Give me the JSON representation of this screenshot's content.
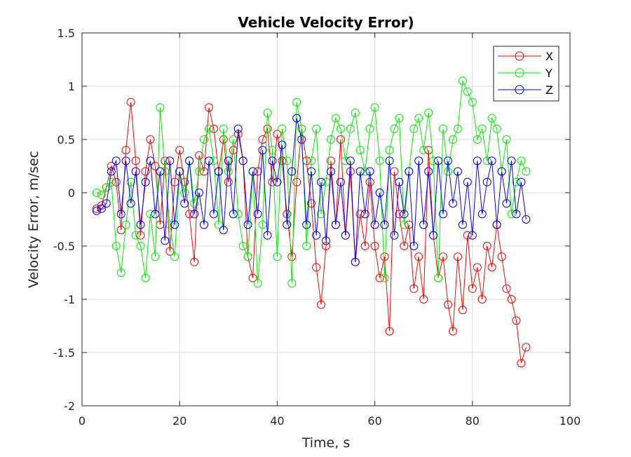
{
  "chart_data": {
    "type": "scatter",
    "title": "Vehicle Velocity Error)",
    "xlabel": "Time, s",
    "ylabel": "Velocity Error, m/sec",
    "xlim": [
      0,
      100
    ],
    "ylim": [
      -2,
      1.5
    ],
    "xticks": [
      "0",
      "20",
      "40",
      "60",
      "80",
      "100"
    ],
    "yticks": [
      "-2",
      "-1.5",
      "-1",
      "-0.5",
      "0",
      "0.5",
      "1",
      "1.5"
    ],
    "grid": true,
    "legend_position": "top-right",
    "marker": "circle-open-with-line",
    "series": [
      {
        "name": "X",
        "color": "#ff0000",
        "points": [
          [
            3,
            -0.15
          ],
          [
            4,
            -0.12
          ],
          [
            5,
            0.05
          ],
          [
            6,
            0.25
          ],
          [
            7,
            0.1
          ],
          [
            8,
            -0.35
          ],
          [
            9,
            0.4
          ],
          [
            10,
            0.85
          ],
          [
            11,
            0.3
          ],
          [
            12,
            -0.4
          ],
          [
            13,
            0.2
          ],
          [
            14,
            0.5
          ],
          [
            15,
            0.25
          ],
          [
            16,
            -0.3
          ],
          [
            17,
            0.3
          ],
          [
            18,
            -0.55
          ],
          [
            19,
            0.1
          ],
          [
            20,
            0.4
          ],
          [
            21,
            0.1
          ],
          [
            22,
            -0.2
          ],
          [
            23,
            -0.65
          ],
          [
            24,
            0.35
          ],
          [
            25,
            0.2
          ],
          [
            26,
            0.8
          ],
          [
            27,
            0.6
          ],
          [
            28,
            0.2
          ],
          [
            29,
            0.5
          ],
          [
            30,
            0.1
          ],
          [
            31,
            0.4
          ],
          [
            32,
            0.55
          ],
          [
            33,
            0.3
          ],
          [
            34,
            -0.6
          ],
          [
            35,
            -0.8
          ],
          [
            36,
            0.2
          ],
          [
            37,
            0.5
          ],
          [
            38,
            0.6
          ],
          [
            39,
            0.1
          ],
          [
            40,
            0.55
          ],
          [
            41,
            0.3
          ],
          [
            42,
            -0.2
          ],
          [
            43,
            -0.6
          ],
          [
            44,
            0.1
          ],
          [
            45,
            0.6
          ],
          [
            46,
            0.3
          ],
          [
            47,
            -0.1
          ],
          [
            48,
            -0.7
          ],
          [
            49,
            -1.05
          ],
          [
            50,
            -0.5
          ],
          [
            51,
            0.3
          ],
          [
            52,
            -0.3
          ],
          [
            53,
            0.5
          ],
          [
            54,
            -0.4
          ],
          [
            55,
            0.2
          ],
          [
            56,
            -0.65
          ],
          [
            57,
            -0.2
          ],
          [
            58,
            -0.5
          ],
          [
            59,
            0.1
          ],
          [
            60,
            -0.5
          ],
          [
            61,
            -0.8
          ],
          [
            62,
            -0.6
          ],
          [
            63,
            -1.3
          ],
          [
            64,
            0.2
          ],
          [
            65,
            -0.2
          ],
          [
            66,
            -0.5
          ],
          [
            67,
            -0.3
          ],
          [
            68,
            -0.9
          ],
          [
            69,
            -0.6
          ],
          [
            70,
            -1.0
          ],
          [
            71,
            0.4
          ],
          [
            72,
            -0.4
          ],
          [
            73,
            -0.8
          ],
          [
            74,
            -0.6
          ],
          [
            75,
            -1.05
          ],
          [
            76,
            -1.3
          ],
          [
            77,
            -0.6
          ],
          [
            78,
            -1.1
          ],
          [
            79,
            -0.4
          ],
          [
            80,
            -0.9
          ],
          [
            81,
            -0.7
          ],
          [
            82,
            -1.0
          ],
          [
            83,
            -0.5
          ],
          [
            84,
            -0.7
          ],
          [
            85,
            -0.3
          ],
          [
            86,
            -0.6
          ],
          [
            87,
            -0.9
          ],
          [
            88,
            -1.0
          ],
          [
            89,
            -1.2
          ],
          [
            90,
            -1.6
          ],
          [
            91,
            -1.45
          ]
        ]
      },
      {
        "name": "Y",
        "color": "#00ee00",
        "points": [
          [
            3,
            0.0
          ],
          [
            4,
            -0.02
          ],
          [
            5,
            0.05
          ],
          [
            6,
            0.1
          ],
          [
            7,
            -0.5
          ],
          [
            8,
            -0.75
          ],
          [
            9,
            -0.3
          ],
          [
            10,
            0.1
          ],
          [
            11,
            -0.4
          ],
          [
            12,
            -0.5
          ],
          [
            13,
            -0.8
          ],
          [
            14,
            -0.2
          ],
          [
            15,
            -0.6
          ],
          [
            16,
            0.8
          ],
          [
            17,
            0.2
          ],
          [
            18,
            -0.3
          ],
          [
            19,
            -0.6
          ],
          [
            20,
            0.2
          ],
          [
            21,
            0.0
          ],
          [
            22,
            0.3
          ],
          [
            23,
            -0.1
          ],
          [
            24,
            0.2
          ],
          [
            25,
            0.5
          ],
          [
            26,
            0.6
          ],
          [
            27,
            0.3
          ],
          [
            28,
            -0.3
          ],
          [
            29,
            0.6
          ],
          [
            30,
            0.2
          ],
          [
            31,
            0.5
          ],
          [
            32,
            -0.2
          ],
          [
            33,
            -0.5
          ],
          [
            34,
            -0.6
          ],
          [
            35,
            0.2
          ],
          [
            36,
            -0.85
          ],
          [
            37,
            -0.3
          ],
          [
            38,
            0.75
          ],
          [
            39,
            0.4
          ],
          [
            40,
            -0.6
          ],
          [
            41,
            0.6
          ],
          [
            42,
            0.3
          ],
          [
            43,
            -0.85
          ],
          [
            44,
            0.85
          ],
          [
            45,
            0.6
          ],
          [
            46,
            -0.5
          ],
          [
            47,
            0.3
          ],
          [
            48,
            0.6
          ],
          [
            49,
            -0.2
          ],
          [
            50,
            0.1
          ],
          [
            51,
            0.5
          ],
          [
            52,
            0.7
          ],
          [
            53,
            0.6
          ],
          [
            54,
            0.3
          ],
          [
            55,
            0.6
          ],
          [
            56,
            0.75
          ],
          [
            57,
            0.4
          ],
          [
            58,
            0.2
          ],
          [
            59,
            0.6
          ],
          [
            60,
            0.8
          ],
          [
            61,
            0.3
          ],
          [
            62,
            -0.8
          ],
          [
            63,
            0.4
          ],
          [
            64,
            0.6
          ],
          [
            65,
            0.7
          ],
          [
            66,
            -0.3
          ],
          [
            67,
            0.2
          ],
          [
            68,
            0.6
          ],
          [
            69,
            0.7
          ],
          [
            70,
            0.4
          ],
          [
            71,
            0.75
          ],
          [
            72,
            0.3
          ],
          [
            73,
            -0.8
          ],
          [
            74,
            0.6
          ],
          [
            75,
            0.2
          ],
          [
            76,
            0.5
          ],
          [
            77,
            0.6
          ],
          [
            78,
            1.05
          ],
          [
            79,
            0.95
          ],
          [
            80,
            0.85
          ],
          [
            81,
            0.5
          ],
          [
            82,
            0.6
          ],
          [
            83,
            0.3
          ],
          [
            84,
            0.7
          ],
          [
            85,
            0.6
          ],
          [
            86,
            0.2
          ],
          [
            87,
            0.5
          ],
          [
            88,
            -0.2
          ],
          [
            89,
            0.1
          ],
          [
            90,
            0.3
          ],
          [
            91,
            0.2
          ]
        ]
      },
      {
        "name": "Z",
        "color": "#0000ff",
        "points": [
          [
            3,
            -0.17
          ],
          [
            4,
            -0.15
          ],
          [
            5,
            -0.1
          ],
          [
            6,
            0.2
          ],
          [
            7,
            0.3
          ],
          [
            8,
            -0.2
          ],
          [
            9,
            0.3
          ],
          [
            10,
            -0.1
          ],
          [
            11,
            0.2
          ],
          [
            12,
            -0.3
          ],
          [
            13,
            0.1
          ],
          [
            14,
            0.3
          ],
          [
            15,
            -0.2
          ],
          [
            16,
            0.2
          ],
          [
            17,
            -0.45
          ],
          [
            18,
            0.3
          ],
          [
            19,
            -0.3
          ],
          [
            20,
            0.2
          ],
          [
            21,
            -0.1
          ],
          [
            22,
            0.3
          ],
          [
            23,
            -0.2
          ],
          [
            24,
            0.0
          ],
          [
            25,
            -0.3
          ],
          [
            26,
            0.3
          ],
          [
            27,
            -0.2
          ],
          [
            28,
            0.2
          ],
          [
            29,
            -0.35
          ],
          [
            30,
            0.3
          ],
          [
            31,
            -0.2
          ],
          [
            32,
            0.6
          ],
          [
            33,
            0.3
          ],
          [
            34,
            -0.3
          ],
          [
            35,
            0.2
          ],
          [
            36,
            -0.2
          ],
          [
            37,
            0.4
          ],
          [
            38,
            -0.4
          ],
          [
            39,
            0.3
          ],
          [
            40,
            0.1
          ],
          [
            41,
            0.45
          ],
          [
            42,
            -0.3
          ],
          [
            43,
            0.2
          ],
          [
            44,
            0.7
          ],
          [
            45,
            0.5
          ],
          [
            46,
            -0.3
          ],
          [
            47,
            0.2
          ],
          [
            48,
            -0.4
          ],
          [
            49,
            0.1
          ],
          [
            50,
            -0.45
          ],
          [
            51,
            0.2
          ],
          [
            52,
            -0.3
          ],
          [
            53,
            0.1
          ],
          [
            54,
            -0.4
          ],
          [
            55,
            0.3
          ],
          [
            56,
            -0.65
          ],
          [
            57,
            0.2
          ],
          [
            58,
            -0.2
          ],
          [
            59,
            0.2
          ],
          [
            60,
            -0.3
          ],
          [
            61,
            0.0
          ],
          [
            62,
            -0.3
          ],
          [
            63,
            0.3
          ],
          [
            64,
            -0.4
          ],
          [
            65,
            0.1
          ],
          [
            66,
            -0.2
          ],
          [
            67,
            0.2
          ],
          [
            68,
            -0.5
          ],
          [
            69,
            0.3
          ],
          [
            70,
            -0.3
          ],
          [
            71,
            0.2
          ],
          [
            72,
            -0.4
          ],
          [
            73,
            0.3
          ],
          [
            74,
            -0.2
          ],
          [
            75,
            0.3
          ],
          [
            76,
            -0.1
          ],
          [
            77,
            0.2
          ],
          [
            78,
            -0.3
          ],
          [
            79,
            0.1
          ],
          [
            80,
            -0.4
          ],
          [
            81,
            0.3
          ],
          [
            82,
            -0.2
          ],
          [
            83,
            0.1
          ],
          [
            84,
            0.3
          ],
          [
            85,
            -0.3
          ],
          [
            86,
            0.2
          ],
          [
            87,
            -0.1
          ],
          [
            88,
            0.3
          ],
          [
            89,
            -0.2
          ],
          [
            90,
            0.1
          ],
          [
            91,
            -0.25
          ]
        ]
      }
    ]
  }
}
